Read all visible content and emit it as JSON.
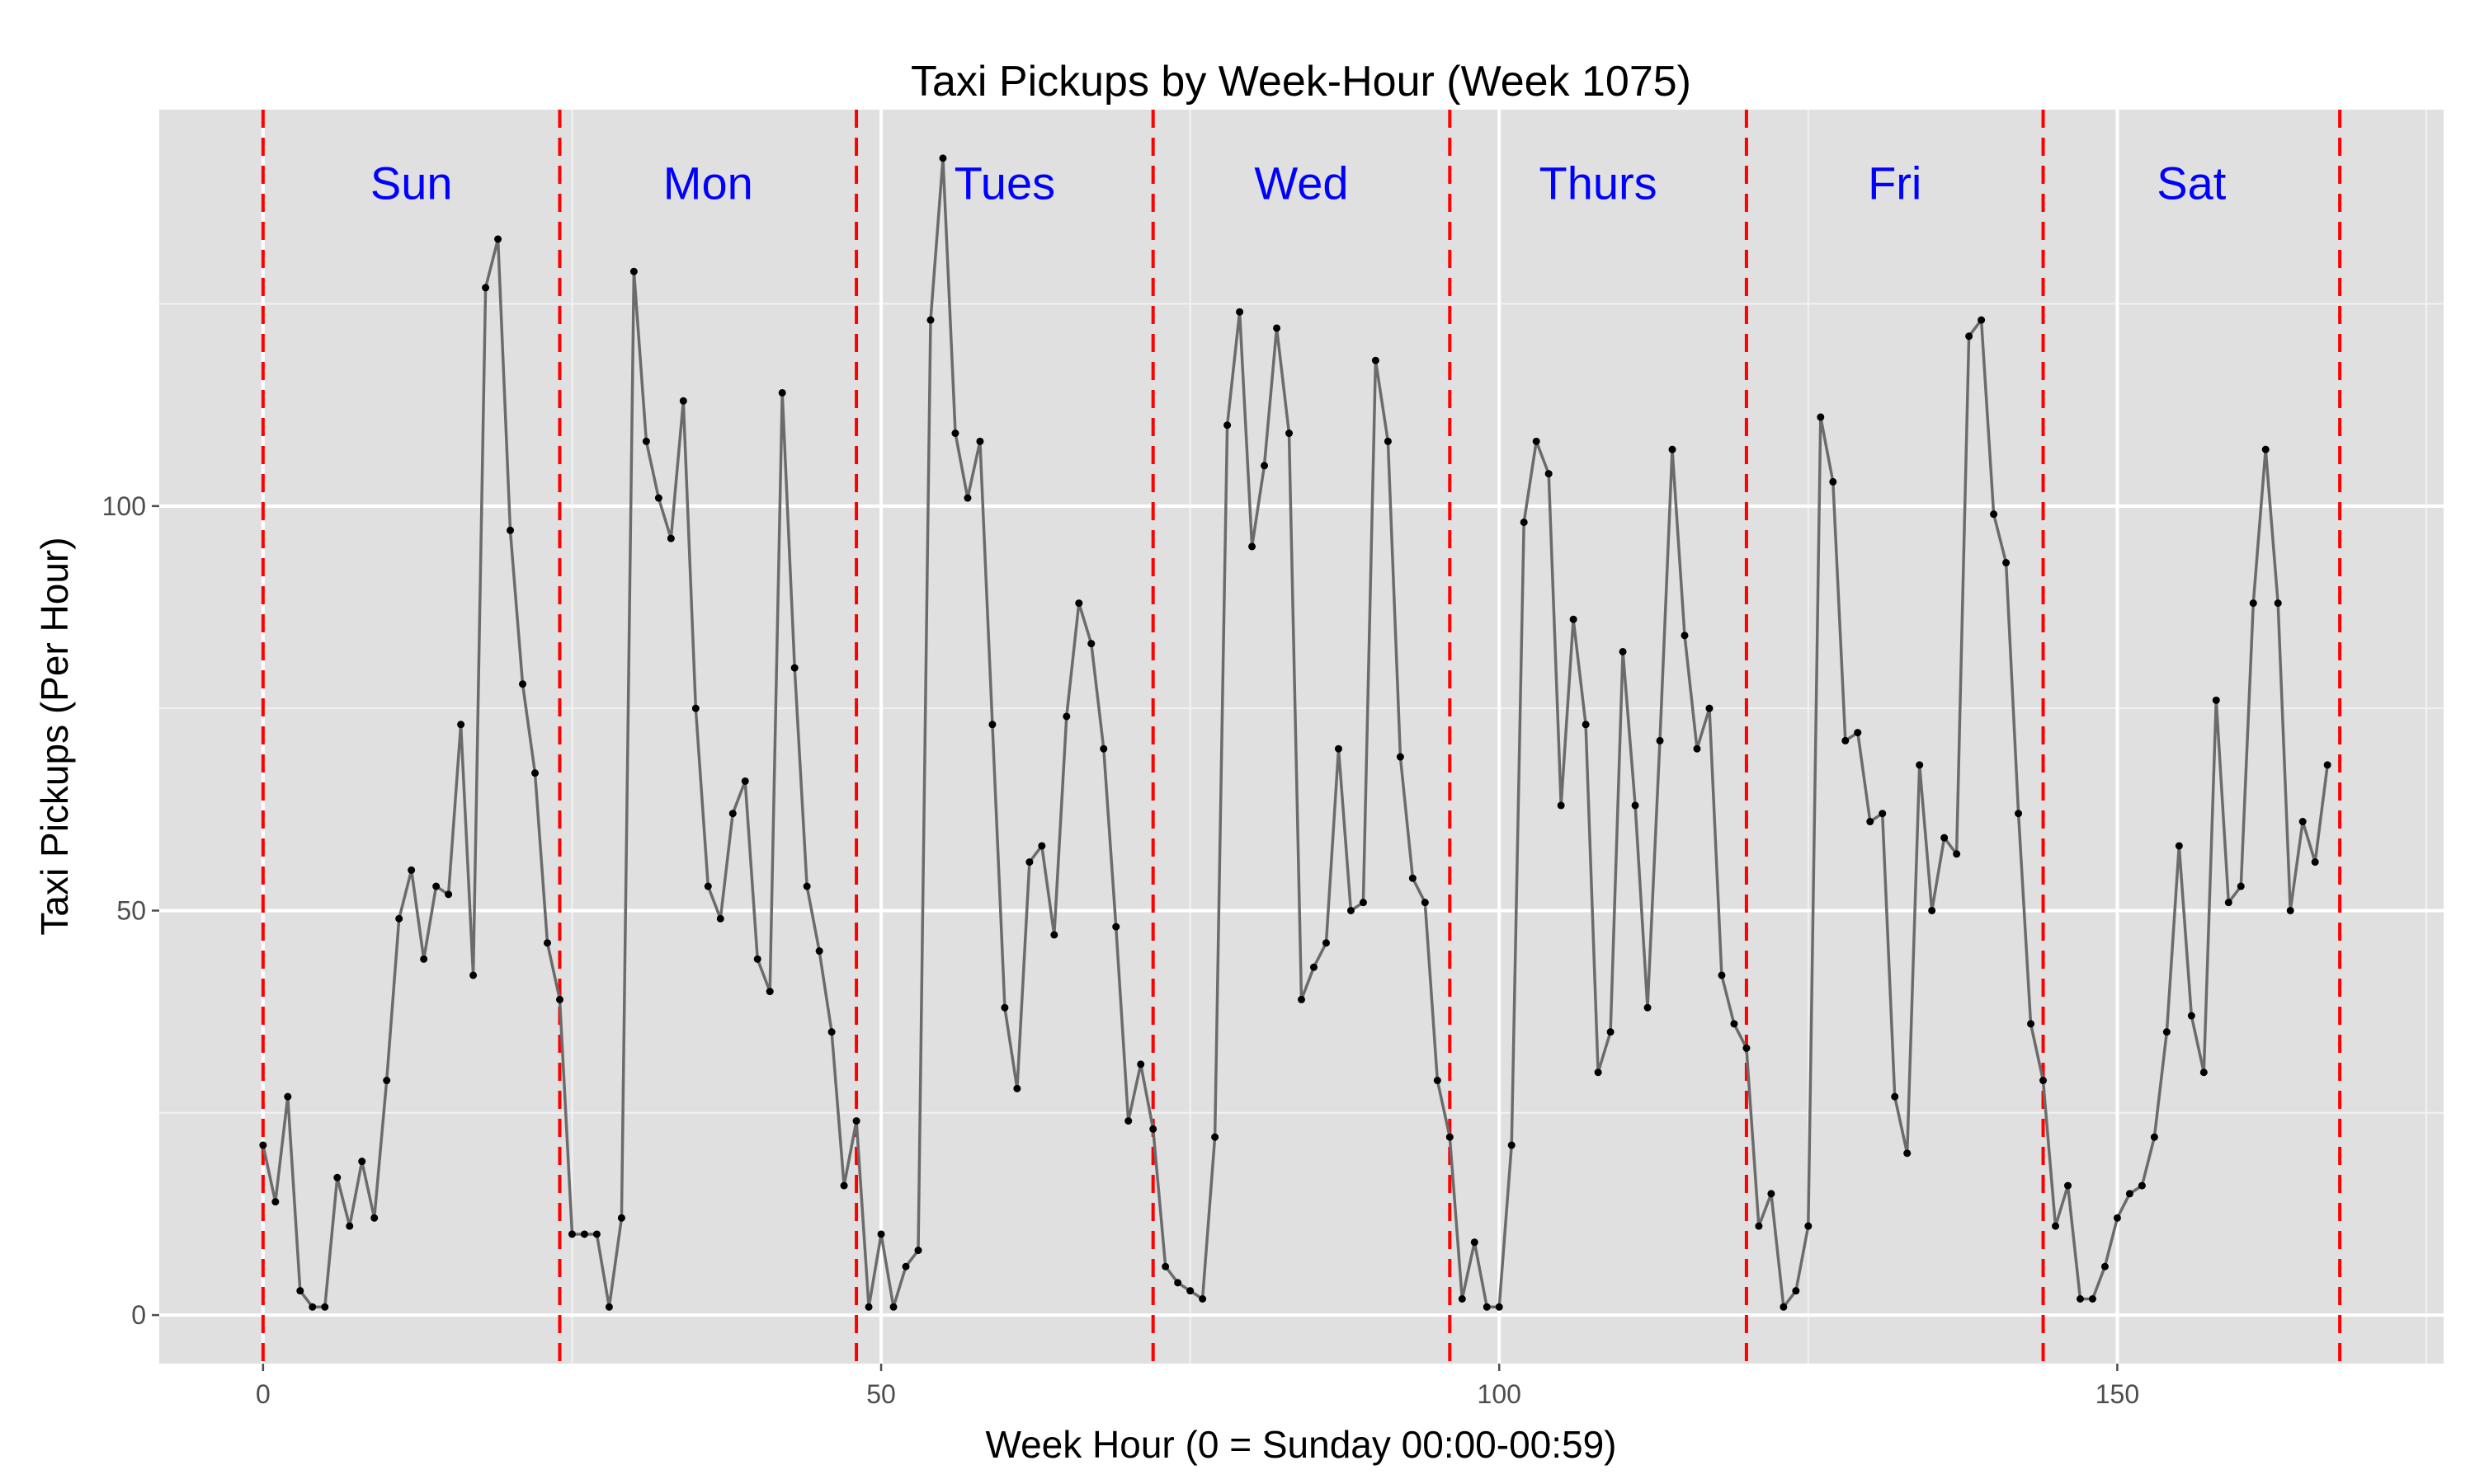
{
  "chart_data": {
    "type": "line",
    "title": "Taxi Pickups by Week-Hour (Week 1075)",
    "xlabel": "Week Hour (0 = Sunday 00:00-00:59)",
    "ylabel": "Taxi Pickups (Per Hour)",
    "xlim": [
      -8.4,
      176.4
    ],
    "ylim": [
      -6,
      149
    ],
    "x_ticks": [
      0,
      50,
      100,
      150
    ],
    "y_ticks": [
      0,
      50,
      100
    ],
    "x_tick_labels": [
      "0",
      "50",
      "100",
      "150"
    ],
    "y_tick_labels": [
      "0",
      "50",
      "100"
    ],
    "grid": true,
    "background": "#e0e0e0",
    "line_color": "#6b6b6b",
    "point_color": "#000000",
    "vline_color": "#ff0000",
    "day_label_color": "#0000ff",
    "day_boundaries": [
      0,
      24,
      48,
      72,
      96,
      120,
      144,
      168
    ],
    "day_labels": [
      {
        "label": "Sun",
        "x": 12
      },
      {
        "label": "Mon",
        "x": 36
      },
      {
        "label": "Tues",
        "x": 60
      },
      {
        "label": "Wed",
        "x": 84
      },
      {
        "label": "Thurs",
        "x": 108
      },
      {
        "label": "Fri",
        "x": 132
      },
      {
        "label": "Sat",
        "x": 156
      }
    ],
    "day_label_y": 140,
    "x": [
      0,
      1,
      2,
      3,
      4,
      5,
      6,
      7,
      8,
      9,
      10,
      11,
      12,
      13,
      14,
      15,
      16,
      17,
      18,
      19,
      20,
      21,
      22,
      23,
      24,
      25,
      26,
      27,
      28,
      29,
      30,
      31,
      32,
      33,
      34,
      35,
      36,
      37,
      38,
      39,
      40,
      41,
      42,
      43,
      44,
      45,
      46,
      47,
      48,
      49,
      50,
      51,
      52,
      53,
      54,
      55,
      56,
      57,
      58,
      59,
      60,
      61,
      62,
      63,
      64,
      65,
      66,
      67,
      68,
      69,
      70,
      71,
      72,
      73,
      74,
      75,
      76,
      77,
      78,
      79,
      80,
      81,
      82,
      83,
      84,
      85,
      86,
      87,
      88,
      89,
      90,
      91,
      92,
      93,
      94,
      95,
      96,
      97,
      98,
      99,
      100,
      101,
      102,
      103,
      104,
      105,
      106,
      107,
      108,
      109,
      110,
      111,
      112,
      113,
      114,
      115,
      116,
      117,
      118,
      119,
      120,
      121,
      122,
      123,
      124,
      125,
      126,
      127,
      128,
      129,
      130,
      131,
      132,
      133,
      134,
      135,
      136,
      137,
      138,
      139,
      140,
      141,
      142,
      143,
      144,
      145,
      146,
      147,
      148,
      149,
      150,
      151,
      152,
      153,
      154,
      155,
      156,
      157,
      158,
      159,
      160,
      161,
      162,
      163,
      164,
      165,
      166,
      167
    ],
    "y": [
      21,
      14,
      27,
      3,
      1,
      1,
      17,
      11,
      19,
      12,
      29,
      49,
      55,
      44,
      53,
      52,
      73,
      42,
      127,
      133,
      97,
      78,
      67,
      46,
      39,
      10,
      10,
      10,
      1,
      12,
      129,
      108,
      101,
      96,
      113,
      75,
      53,
      49,
      62,
      66,
      44,
      40,
      114,
      80,
      53,
      45,
      35,
      16,
      24,
      1,
      10,
      1,
      6,
      8,
      123,
      143,
      109,
      101,
      108,
      73,
      38,
      28,
      56,
      58,
      47,
      74,
      88,
      83,
      70,
      48,
      24,
      31,
      23,
      6,
      4,
      3,
      2,
      22,
      110,
      124,
      95,
      105,
      122,
      109,
      39,
      43,
      46,
      70,
      50,
      51,
      118,
      108,
      69,
      54,
      51,
      29,
      22,
      2,
      9,
      1,
      1,
      21,
      98,
      108,
      104,
      63,
      86,
      73,
      30,
      35,
      82,
      63,
      38,
      71,
      107,
      84,
      70,
      75,
      42,
      36,
      33,
      11,
      15,
      1,
      3,
      11,
      111,
      103,
      71,
      72,
      61,
      62,
      27,
      20,
      68,
      50,
      59,
      57,
      121,
      123,
      99,
      93,
      62,
      36,
      29,
      11,
      16,
      2,
      2,
      6,
      12,
      15,
      16,
      22,
      35,
      58,
      37,
      30,
      76,
      51,
      53,
      88,
      107,
      88,
      50,
      61,
      56,
      68
    ]
  }
}
